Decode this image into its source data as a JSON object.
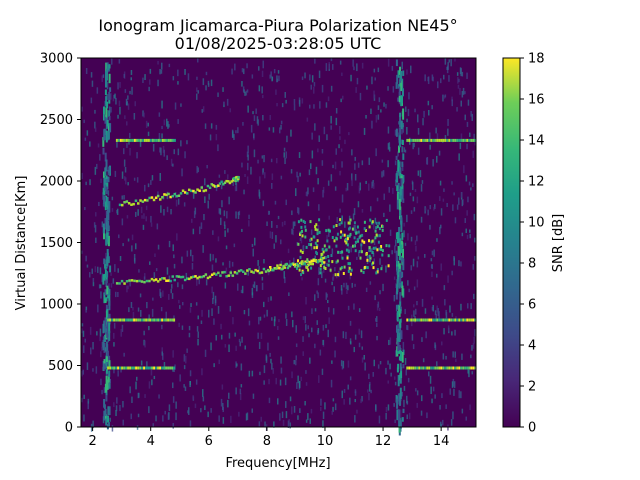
{
  "chart_data": {
    "type": "heatmap",
    "title_line1": "Ionogram Jicamarca-Piura Polarization NE45°",
    "title_line2": "01/08/2025-03:28:05 UTC",
    "xlabel": "Frequency[MHz]",
    "ylabel": "Virtual Distance[Km]",
    "xlim": [
      1.6,
      15.2
    ],
    "ylim": [
      0,
      3000
    ],
    "xticks": [
      2,
      4,
      6,
      8,
      10,
      12,
      14
    ],
    "yticks": [
      0,
      500,
      1000,
      1500,
      2000,
      2500,
      3000
    ],
    "colorbar": {
      "label": "SNR [dB]",
      "range": [
        0,
        18
      ],
      "ticks": [
        0,
        2,
        4,
        6,
        8,
        10,
        12,
        14,
        16,
        18
      ],
      "colormap": "viridis"
    },
    "traces": [
      {
        "x": [
          2.8,
          4.0,
          5.0,
          6.0,
          7.0,
          8.0,
          8.5,
          9.0,
          9.5,
          10.0
        ],
        "y": [
          1175,
          1200,
          1220,
          1240,
          1265,
          1290,
          1310,
          1330,
          1350,
          1370
        ]
      },
      {
        "x": [
          2.9,
          4.0,
          5.0,
          6.0,
          6.8,
          7.0
        ],
        "y": [
          1820,
          1860,
          1910,
          1960,
          2010,
          2030
        ]
      }
    ],
    "scatter_region": {
      "x": [
        9.0,
        12.2
      ],
      "y": [
        1250,
        1700
      ]
    },
    "horizontal_bands": [
      {
        "x_ranges": [
          [
            2.8,
            4.8
          ],
          [
            12.8,
            15.2
          ]
        ],
        "y": 2330
      },
      {
        "x_ranges": [
          [
            2.5,
            4.8
          ],
          [
            12.8,
            15.2
          ]
        ],
        "y": 870
      },
      {
        "x_ranges": [
          [
            2.5,
            4.8
          ],
          [
            12.8,
            15.2
          ]
        ],
        "y": 480
      }
    ],
    "vertical_bands": [
      2.4,
      2.5,
      12.5,
      12.6
    ]
  }
}
